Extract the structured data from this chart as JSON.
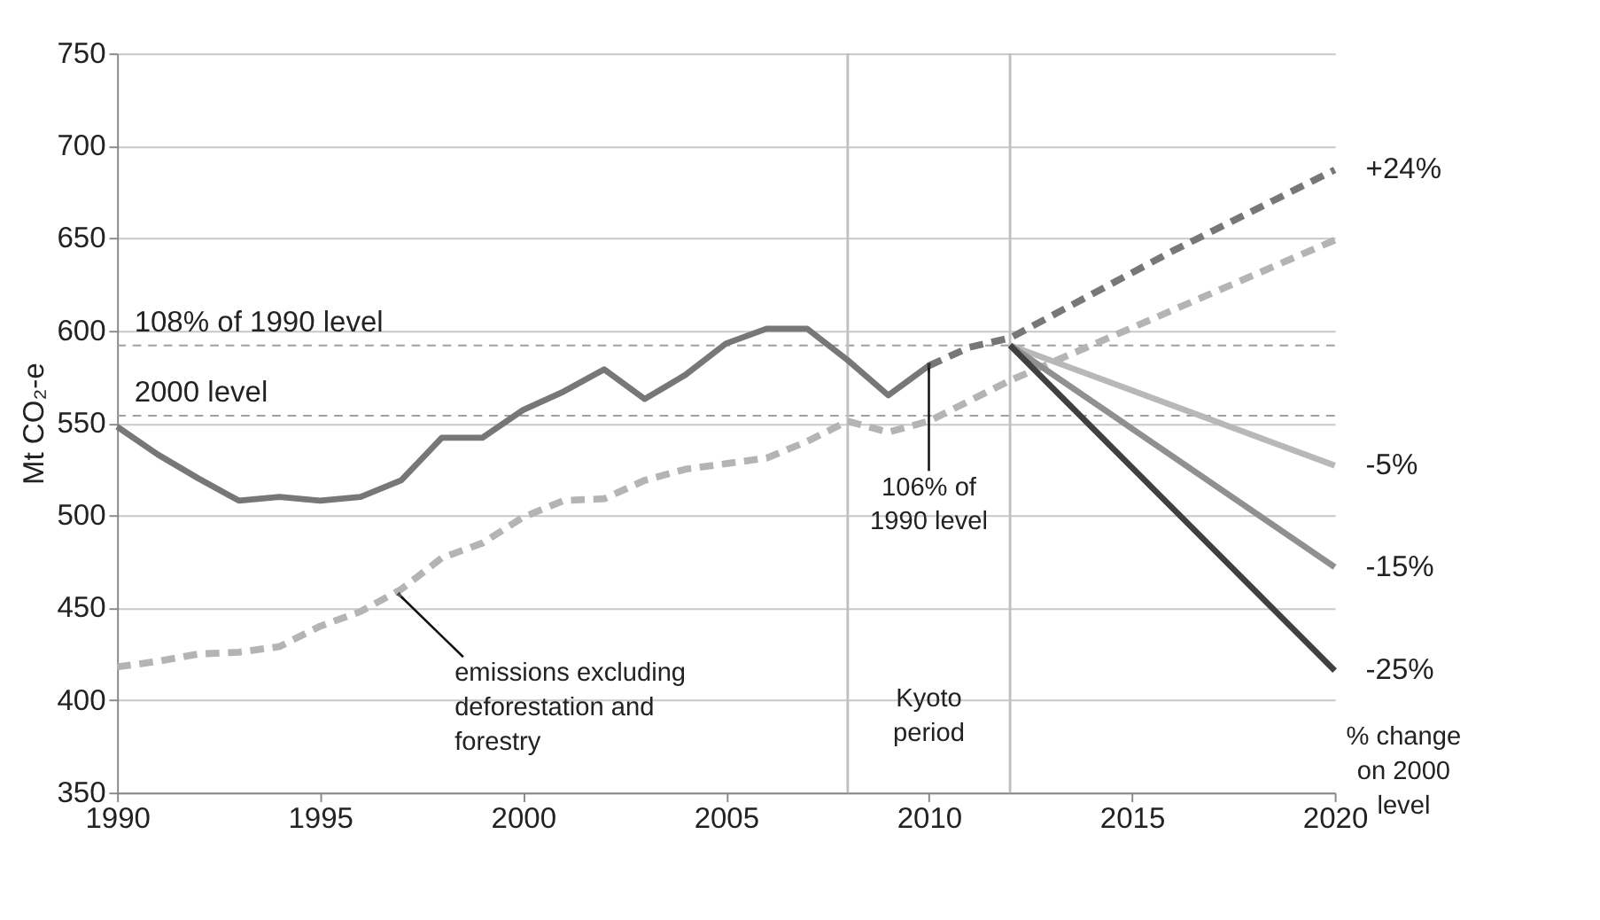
{
  "chart_data": {
    "type": "line",
    "ylabel": "Mt CO₂-e",
    "xlim": [
      1990,
      2020
    ],
    "xticks": [
      1990,
      1995,
      2000,
      2005,
      2010,
      2015,
      2020
    ],
    "ylim": [
      350,
      750
    ],
    "yticks": [
      350,
      400,
      450,
      500,
      550,
      600,
      650,
      700,
      750
    ],
    "grid": "y",
    "marker": "none",
    "series": [
      {
        "color": "#777777",
        "line_style": "solid",
        "x": [
          1990,
          1991,
          1992,
          1993,
          1994,
          1995,
          1996,
          1997,
          1998,
          1999,
          2000,
          2001,
          2002,
          2003,
          2004,
          2005,
          2006,
          2007,
          2008,
          2009,
          2010
        ],
        "values": [
          548,
          533,
          520,
          508,
          510,
          508,
          510,
          519,
          542,
          542,
          557,
          567,
          579,
          563,
          576,
          593,
          601,
          601,
          584,
          565,
          581
        ]
      },
      {
        "name": "+24%",
        "color": "#777777",
        "line_style": "dashed",
        "x": [
          2010,
          2011,
          2012,
          2016,
          2020
        ],
        "values": [
          581,
          591,
          596,
          643,
          687
        ]
      },
      {
        "color": "#b4b4b4",
        "line_style": "dashed",
        "x": [
          1990,
          1991,
          1992,
          1993,
          1994,
          1995,
          1996,
          1997,
          1998,
          1999,
          2000,
          2001,
          2002,
          2003,
          2004,
          2005,
          2006,
          2007,
          2008,
          2009,
          2010,
          2011,
          2012,
          2020
        ],
        "values": [
          418,
          421,
          425,
          426,
          429,
          440,
          448,
          460,
          477,
          485,
          499,
          508,
          509,
          519,
          525,
          528,
          531,
          540,
          551,
          545,
          551,
          562,
          573,
          649
        ]
      },
      {
        "name": "-5%",
        "color": "#b8b8b8",
        "line_style": "solid",
        "x": [
          2012,
          2020
        ],
        "values": [
          592,
          527
        ]
      },
      {
        "name": "-15%",
        "color": "#909090",
        "line_style": "solid",
        "x": [
          2012,
          2020
        ],
        "values": [
          592,
          472
        ]
      },
      {
        "name": "-25%",
        "color": "#404040",
        "line_style": "solid",
        "x": [
          2012,
          2020
        ],
        "values": [
          592,
          416
        ]
      }
    ],
    "ref_lines": [
      {
        "axis": "y",
        "value": 592,
        "label": "108% of 1990 level",
        "color": "#a0a0a0",
        "line_style": "dashed"
      },
      {
        "axis": "y",
        "value": 554,
        "label": "2000 level",
        "color": "#a0a0a0",
        "line_style": "dashed"
      },
      {
        "axis": "x",
        "value": 2008,
        "color": "#c0c0c0",
        "line_style": "solid"
      },
      {
        "axis": "x",
        "value": 2012,
        "color": "#c0c0c0",
        "line_style": "solid"
      }
    ],
    "annotations": [
      {
        "text": "106% of 1990 level",
        "x": 2010,
        "y": 580
      },
      {
        "text": "emissions excluding deforestation and forestry",
        "x": 1997,
        "y": 456
      },
      "Kyoto period",
      "% change on 2000 level"
    ]
  }
}
